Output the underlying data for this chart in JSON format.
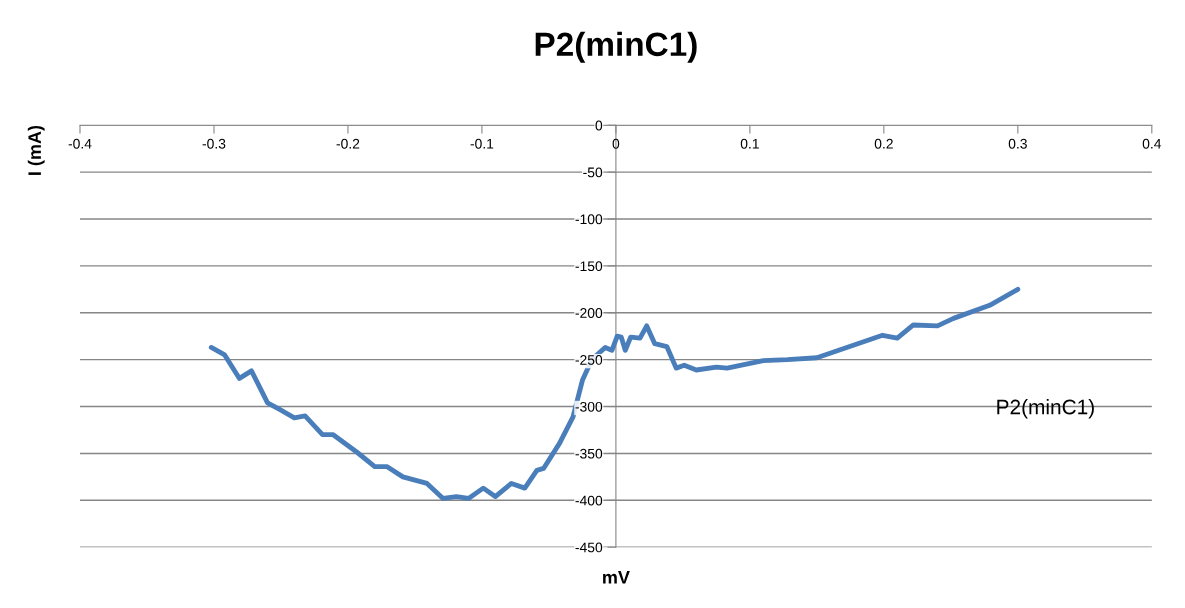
{
  "chart_data": {
    "type": "line",
    "title": "P2(minC1)",
    "xlabel": "mV",
    "ylabel": "I (mA)",
    "xlim": [
      -0.4,
      0.4
    ],
    "xticks": [
      -0.4,
      -0.3,
      -0.2,
      -0.1,
      0,
      0.1,
      0.2,
      0.3,
      0.4
    ],
    "ylim": [
      -450,
      0
    ],
    "yticks": [
      -450,
      -400,
      -350,
      -300,
      -250,
      -200,
      -150,
      -100,
      -50,
      0
    ],
    "grid": "y",
    "legend": false,
    "marker": "none",
    "line_style": "solid",
    "series": [
      {
        "name": "P2(minC1)",
        "color": "#4a7ebb",
        "x": [
          -0.302,
          -0.292,
          -0.281,
          -0.272,
          -0.26,
          -0.251,
          -0.24,
          -0.232,
          -0.219,
          -0.211,
          -0.193,
          -0.18,
          -0.171,
          -0.159,
          -0.141,
          -0.129,
          -0.119,
          -0.11,
          -0.099,
          -0.09,
          -0.078,
          -0.068,
          -0.059,
          -0.054,
          -0.042,
          -0.032,
          -0.025,
          -0.018,
          -0.008,
          -0.003,
          0.001,
          0.004,
          0.007,
          0.011,
          0.018,
          0.023,
          0.029,
          0.038,
          0.045,
          0.051,
          0.06,
          0.075,
          0.083,
          0.11,
          0.128,
          0.15,
          0.199,
          0.21,
          0.222,
          0.24,
          0.252,
          0.279,
          0.3
        ],
        "values": [
          -237,
          -245,
          -270,
          -262,
          -296,
          -303,
          -312,
          -310,
          -330,
          -330,
          -349,
          -364,
          -364,
          -375,
          -382,
          -398,
          -396,
          -398,
          -387,
          -396,
          -382,
          -387,
          -368,
          -366,
          -339,
          -311,
          -272,
          -250,
          -237,
          -240,
          -225,
          -226,
          -240,
          -226,
          -227,
          -214,
          -233,
          -236,
          -259,
          -256,
          -261,
          -258,
          -259,
          -251,
          -250,
          -248,
          -224,
          -227,
          -213,
          -214,
          -206,
          -192,
          -175
        ]
      }
    ]
  }
}
